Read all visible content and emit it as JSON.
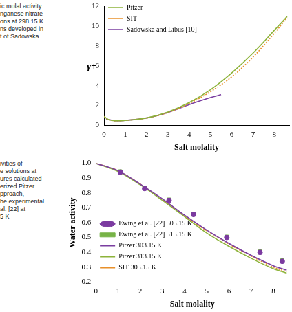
{
  "chart_data": [
    {
      "type": "line",
      "annotations": [
        "ic molal activity",
        "nganese nitrate",
        "ons at 298.15 K",
        "ns developed in",
        "t of Sadowska"
      ],
      "x_label": "Salt molality",
      "y_label": "γ±",
      "xlim": [
        0,
        8.7
      ],
      "xticks": [
        0,
        1,
        2,
        3,
        4,
        5,
        6,
        7,
        8
      ],
      "ylim": [
        0,
        12
      ],
      "yticks": [
        0,
        2,
        4,
        6,
        8,
        10,
        12
      ],
      "grid": false,
      "legend": "top-left",
      "series": [
        {
          "name": "Pitzer",
          "color": "#8db33a",
          "line_style": "solid",
          "x": [
            0.01,
            0.2,
            0.5,
            1,
            2,
            3,
            4,
            5,
            6,
            7,
            8,
            8.6
          ],
          "values": [
            0.9,
            0.6,
            0.47,
            0.5,
            0.75,
            1.35,
            2.3,
            3.6,
            5.3,
            7.3,
            9.6,
            11
          ]
        },
        {
          "name": "SIT",
          "color": "#e8902a",
          "line_style": "dotted",
          "x": [
            0.01,
            0.2,
            0.5,
            1,
            2,
            3,
            4,
            5,
            6,
            7,
            8,
            8.6
          ],
          "values": [
            0.9,
            0.6,
            0.47,
            0.5,
            0.74,
            1.3,
            2.2,
            3.4,
            4.9,
            6.9,
            9.3,
            10.9
          ]
        },
        {
          "name": "Sadowska and Libus [10]",
          "color": "#7a3ea0",
          "line_style": "solid",
          "x": [
            0.1,
            0.5,
            1,
            2,
            3,
            4,
            5,
            5.5
          ],
          "values": [
            0.65,
            0.47,
            0.5,
            0.75,
            1.3,
            2.1,
            2.8,
            3.1
          ]
        }
      ]
    },
    {
      "type": "line",
      "annotations": [
        "ivities of",
        "e solutions at",
        "ures calculated",
        "erized Pitzer",
        "pproach,",
        "he experimental",
        "al. [22] at",
        "5 K"
      ],
      "x_label": "Salt molality",
      "y_label": "Water activity",
      "xlim": [
        0,
        8.7
      ],
      "xticks": [
        0,
        1,
        2,
        3,
        4,
        5,
        6,
        7,
        8
      ],
      "ylim": [
        0.2,
        1
      ],
      "yticks": [
        0.2,
        0.3,
        0.4,
        0.5,
        0.6,
        0.7,
        0.8,
        0.9,
        {
          "value": 1,
          "label": "1.0"
        }
      ],
      "grid": false,
      "legend": "bottom-left",
      "series": [
        {
          "name": "Ewing et al. [22] 303.15 K",
          "color": "#7b3aa0",
          "type": "scatter",
          "marker": "circle",
          "x": [
            1.1,
            2.2,
            3.3,
            4.4,
            5.9,
            7.4,
            8.4
          ],
          "values": [
            0.94,
            0.83,
            0.75,
            0.655,
            0.5,
            0.4,
            0.34
          ]
        },
        {
          "name": "Ewing et al. [22] 313.15 K",
          "color": "#77b347",
          "type": "scatter",
          "marker": "square",
          "x": [
            1.1,
            2.2,
            3.3,
            4.4,
            5.9,
            7.4,
            8.4
          ],
          "values": [
            0.945,
            0.835,
            0.755,
            0.66,
            0.505,
            0.405,
            0.345
          ]
        },
        {
          "name": "Pitzer 303.15 K",
          "color": "#7a3ea0",
          "line_style": "solid",
          "x": [
            0,
            1,
            2,
            3,
            4,
            5,
            6,
            7,
            8,
            8.6
          ],
          "values": [
            1,
            0.95,
            0.86,
            0.76,
            0.65,
            0.55,
            0.46,
            0.38,
            0.31,
            0.28
          ]
        },
        {
          "name": "Pitzer 313.15 K",
          "color": "#8db33a",
          "line_style": "solid",
          "x": [
            0,
            1,
            2,
            3,
            4,
            5,
            6,
            7,
            8,
            8.6
          ],
          "values": [
            1,
            0.945,
            0.855,
            0.75,
            0.64,
            0.53,
            0.44,
            0.36,
            0.29,
            0.26
          ]
        },
        {
          "name": "SIT 303.15 K",
          "color": "#e8902a",
          "line_style": "dotted",
          "x": [
            0,
            1,
            2,
            3,
            4,
            5,
            6,
            7,
            8,
            8.6
          ],
          "values": [
            1,
            0.95,
            0.86,
            0.755,
            0.645,
            0.545,
            0.455,
            0.375,
            0.3,
            0.27
          ]
        }
      ]
    }
  ]
}
